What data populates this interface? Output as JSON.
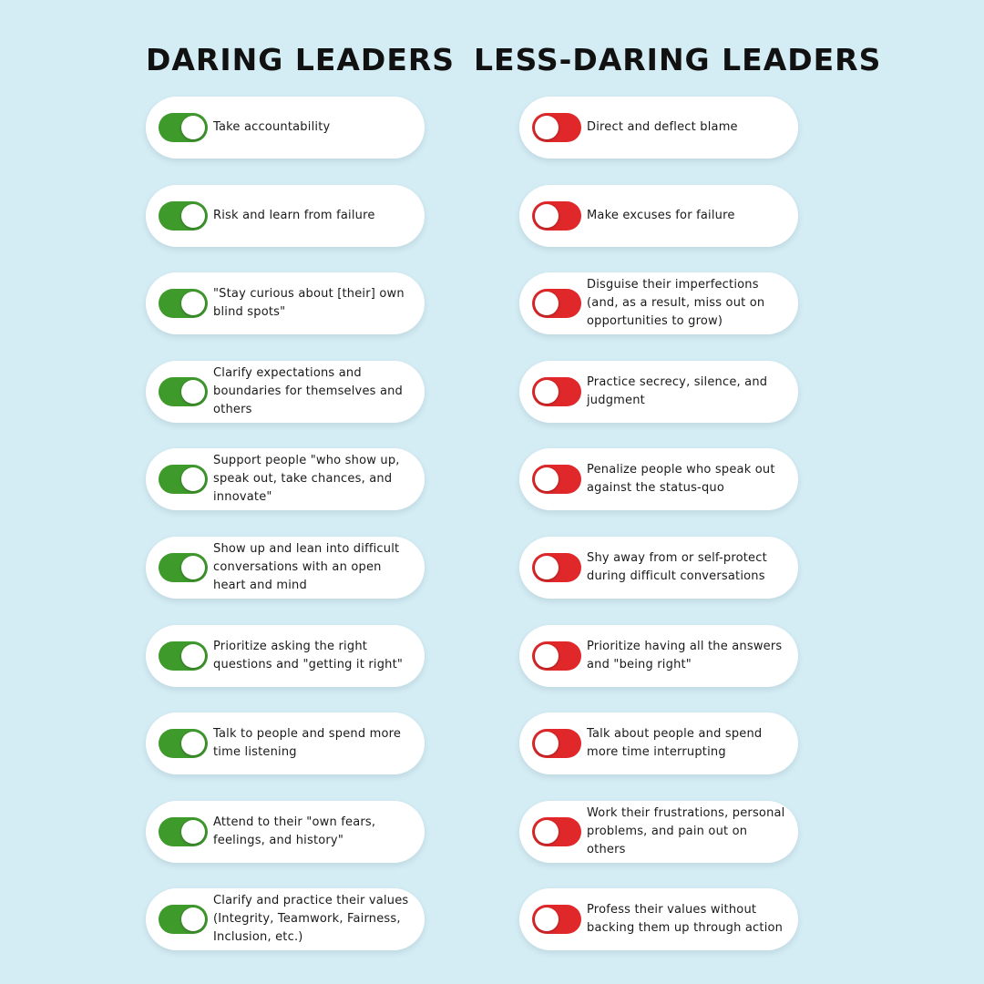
{
  "headers": {
    "left": "DARING LEADERS",
    "right": "LESS-DARING LEADERS"
  },
  "colors": {
    "background": "#d4ecf4",
    "toggle_on": "#3f9a2c",
    "toggle_off": "#e0282a",
    "card": "#ffffff"
  },
  "icons": {
    "on": "toggle-on-icon",
    "off": "toggle-off-icon"
  },
  "daring": [
    {
      "text": "Take accountability",
      "toggle": "on"
    },
    {
      "text": "Risk and learn from failure",
      "toggle": "on"
    },
    {
      "text": "\"Stay curious about [their] own blind spots\"",
      "toggle": "on"
    },
    {
      "text": "Clarify expectations and boundaries for themselves and others",
      "toggle": "on"
    },
    {
      "text": "Support people \"who show up, speak out, take chances, and innovate\"",
      "toggle": "on"
    },
    {
      "text": "Show up and lean into difficult conversations with an open heart and mind",
      "toggle": "on"
    },
    {
      "text": "Prioritize asking the right questions and \"getting it right\"",
      "toggle": "on"
    },
    {
      "text": "Talk to people and spend more time listening",
      "toggle": "on"
    },
    {
      "text": "Attend to their \"own fears, feelings, and history\"",
      "toggle": "on"
    },
    {
      "text": "Clarify and practice their values (Integrity, Teamwork, Fairness, Inclusion, etc.)",
      "toggle": "on"
    }
  ],
  "less_daring": [
    {
      "text": "Direct and deflect blame",
      "toggle": "off"
    },
    {
      "text": "Make excuses for failure",
      "toggle": "off"
    },
    {
      "text": "Disguise their imperfections (and, as a result, miss out on opportunities to grow)",
      "toggle": "off"
    },
    {
      "text": "Practice secrecy, silence, and judgment",
      "toggle": "off"
    },
    {
      "text": "Penalize people who speak out against the status-quo",
      "toggle": "off"
    },
    {
      "text": "Shy away from or self-protect during difficult conversations",
      "toggle": "off"
    },
    {
      "text": "Prioritize having all the answers and \"being right\"",
      "toggle": "off"
    },
    {
      "text": "Talk about people and spend more time interrupting",
      "toggle": "off"
    },
    {
      "text": "Work their frustrations, personal problems, and pain out on others",
      "toggle": "off"
    },
    {
      "text": "Profess their values without backing them up through action",
      "toggle": "off"
    }
  ]
}
